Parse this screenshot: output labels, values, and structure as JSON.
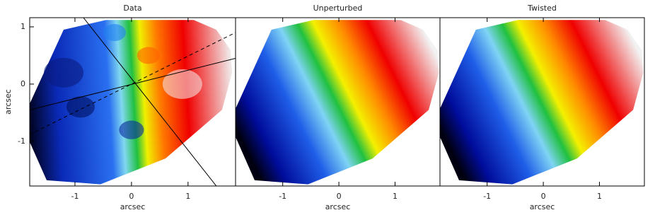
{
  "chart_data": [
    {
      "type": "map",
      "title": "Data",
      "xlabel": "arcsec",
      "ylabel": "arcsec",
      "xlim": [
        -1.8,
        1.84
      ],
      "ylim": [
        -1.78,
        1.16
      ],
      "xticks": [
        -1,
        0,
        1
      ],
      "yticks": [
        -1,
        0,
        1
      ]
    },
    {
      "type": "map",
      "title": "Unperturbed",
      "xlabel": "arcsec",
      "xlim": [
        -1.84,
        1.8
      ],
      "ylim": [
        -1.78,
        1.16
      ],
      "xticks": [
        -1,
        0,
        1
      ]
    },
    {
      "type": "map",
      "title": "Twisted",
      "xlabel": "arcsec",
      "xlim": [
        -1.84,
        1.8
      ],
      "ylim": [
        -1.78,
        1.16
      ],
      "xticks": [
        -1,
        0,
        1
      ]
    }
  ]
}
